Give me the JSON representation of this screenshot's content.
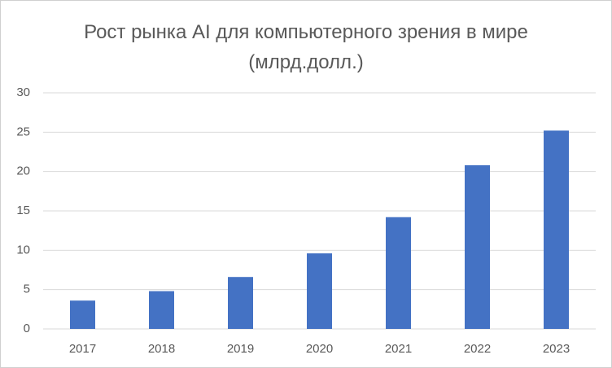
{
  "chart_data": {
    "type": "bar",
    "title": "Рост рынка AI для компьютерного зрения в мире (млрд.долл.)",
    "categories": [
      "2017",
      "2018",
      "2019",
      "2020",
      "2021",
      "2022",
      "2023"
    ],
    "values": [
      3.6,
      4.8,
      6.6,
      9.6,
      14.2,
      20.8,
      25.2
    ],
    "color": "#4472c4",
    "ylim": [
      0,
      30
    ],
    "yticks": [
      0,
      5,
      10,
      15,
      20,
      25,
      30
    ],
    "grid": true
  }
}
